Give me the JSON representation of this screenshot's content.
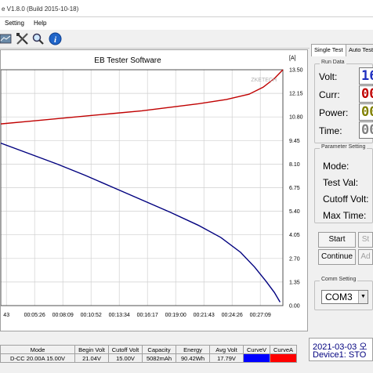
{
  "window": {
    "title_fragment": "e V1.8.0 (Build 2015-10-18)"
  },
  "menu": {
    "items": [
      {
        "label": "Setting"
      },
      {
        "label": "Help"
      }
    ]
  },
  "toolbar": {
    "icons": [
      "chart-icon",
      "tools-icon",
      "magnifier-icon",
      "info-icon"
    ]
  },
  "chart_data": {
    "type": "line",
    "title": "EB Tester Software",
    "watermark": "ZKETECH",
    "x_unit": "time",
    "x_ticks": [
      "43",
      "00:05:26",
      "00:08:09",
      "00:10:52",
      "00:13:34",
      "00:16:17",
      "00:19:00",
      "00:21:43",
      "00:24:26",
      "00:27:09"
    ],
    "right_axis_label": "[A]",
    "right_ticks": [
      13.5,
      12.15,
      10.8,
      9.45,
      8.1,
      6.75,
      5.4,
      4.05,
      2.7,
      1.35,
      0
    ],
    "right_tick_labels": [
      "13.50",
      "12.15",
      "10.80",
      "9.45",
      "8.10",
      "6.75",
      "5.40",
      "4.05",
      "2.70",
      "1.35",
      "0.00"
    ],
    "ylim": [
      0,
      13.5
    ],
    "grid": true,
    "series": [
      {
        "color": "#c00000",
        "points": [
          [
            0,
            10.4
          ],
          [
            10,
            10.55
          ],
          [
            20,
            10.7
          ],
          [
            30,
            10.85
          ],
          [
            40,
            11.0
          ],
          [
            50,
            11.15
          ],
          [
            60,
            11.35
          ],
          [
            70,
            11.55
          ],
          [
            80,
            11.8
          ],
          [
            88,
            12.1
          ],
          [
            93,
            12.5
          ],
          [
            97,
            13.0
          ],
          [
            100,
            13.5
          ]
        ]
      },
      {
        "color": "#00007f",
        "points": [
          [
            0,
            9.3
          ],
          [
            10,
            8.7
          ],
          [
            20,
            8.1
          ],
          [
            30,
            7.45
          ],
          [
            40,
            6.75
          ],
          [
            50,
            6.05
          ],
          [
            60,
            5.35
          ],
          [
            70,
            4.6
          ],
          [
            78,
            3.9
          ],
          [
            85,
            3.05
          ],
          [
            90,
            2.2
          ],
          [
            94,
            1.4
          ],
          [
            97,
            0.75
          ],
          [
            99,
            0.2
          ]
        ]
      }
    ],
    "ylabel": "",
    "xlabel": ""
  },
  "right_panel": {
    "tabs": [
      {
        "label": "Single Test"
      },
      {
        "label": "Auto Test"
      }
    ],
    "run_data": {
      "title": "Run Data",
      "rows": [
        {
          "label": "Volt:",
          "lcd": "16",
          "color": "#2030c0"
        },
        {
          "label": "Curr:",
          "lcd": "00",
          "color": "#c00000"
        },
        {
          "label": "Power:",
          "lcd": "00",
          "color": "#808000"
        },
        {
          "label": "Time:",
          "lcd": "00",
          "color": "#808080"
        }
      ]
    },
    "parameter_setting": {
      "title": "Parameter Setting",
      "rows": [
        {
          "label": "Mode:"
        },
        {
          "label": "Test Val:"
        },
        {
          "label": "Cutoff Volt:"
        },
        {
          "label": "Max Time:"
        }
      ]
    },
    "buttons": {
      "start": "Start",
      "start2": "St",
      "continue": "Continue",
      "adj": "Ad"
    },
    "comm_setting": {
      "title": "Comm Setting",
      "port": "COM3"
    }
  },
  "status": {
    "date_line": "2021-03-03 오",
    "device_line": "Device1: STO"
  },
  "table": {
    "headers": [
      "Mode",
      "Begin Volt",
      "Cutoff Volt",
      "Capacity",
      "Energy",
      "Avg Volt",
      "CurveV",
      "CurveA"
    ],
    "row": [
      "D-CC 20.00A 15.00V",
      "21.04V",
      "15.00V",
      "5082mAh",
      "90.42Wh",
      "17.79V",
      "",
      ""
    ],
    "curve_v_color": "#0000ff",
    "curve_a_color": "#ff0000"
  }
}
